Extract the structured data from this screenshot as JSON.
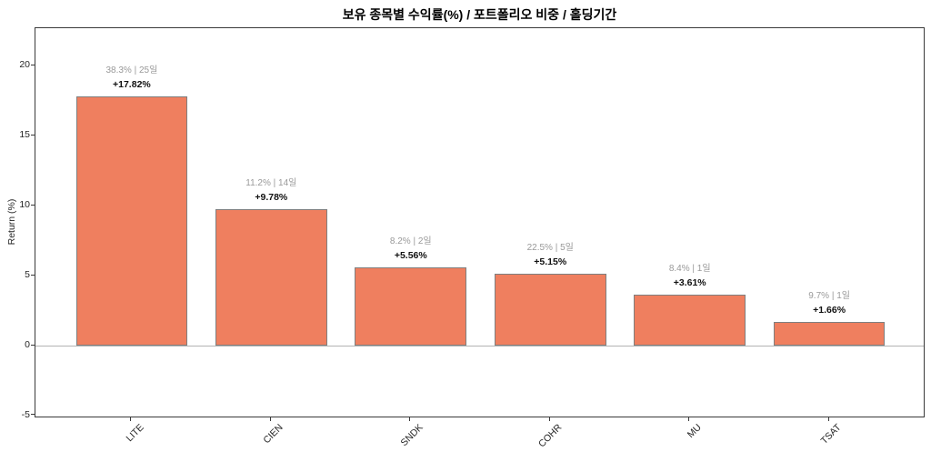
{
  "chart_data": {
    "type": "bar",
    "title": "보유 종목별 수익률(%) / 포트폴리오 비중 / 홀딩기간",
    "xlabel": "",
    "ylabel": "Return (%)",
    "categories": [
      "LITE",
      "CIEN",
      "SNDK",
      "COHR",
      "MU",
      "TSAT"
    ],
    "values": [
      17.82,
      9.78,
      5.56,
      5.15,
      3.61,
      1.66
    ],
    "bar_value_labels": [
      "+17.82%",
      "+9.78%",
      "+5.56%",
      "+5.15%",
      "+3.61%",
      "+1.66%"
    ],
    "annotation_labels": [
      "38.3% | 25일",
      "11.2% | 14일",
      "8.2% | 2일",
      "22.5% | 5일",
      "8.4% | 1일",
      "9.7% | 1일"
    ],
    "portfolio_weights_pct": [
      38.3,
      11.2,
      8.2,
      22.5,
      8.4,
      9.7
    ],
    "holding_days": [
      25,
      14,
      2,
      5,
      1,
      1
    ],
    "yticks": [
      "20",
      "15",
      "10",
      "5",
      "0",
      "-5"
    ],
    "ytick_values": [
      20,
      15,
      10,
      5,
      0,
      -5
    ],
    "ylim": [
      -5.2,
      22.69
    ],
    "grid": false,
    "legend": null,
    "zero_line": true,
    "colors": {
      "bar_fill": "#EF7F5F",
      "bar_edge": "#7f7f7f",
      "annotation_gray": "#999999",
      "value_label": "#111111",
      "axis": "#3a3a3a",
      "zero_line": "#b3b3b3",
      "tick_label": "#262626",
      "title": "#000000",
      "background": "#ffffff"
    }
  }
}
